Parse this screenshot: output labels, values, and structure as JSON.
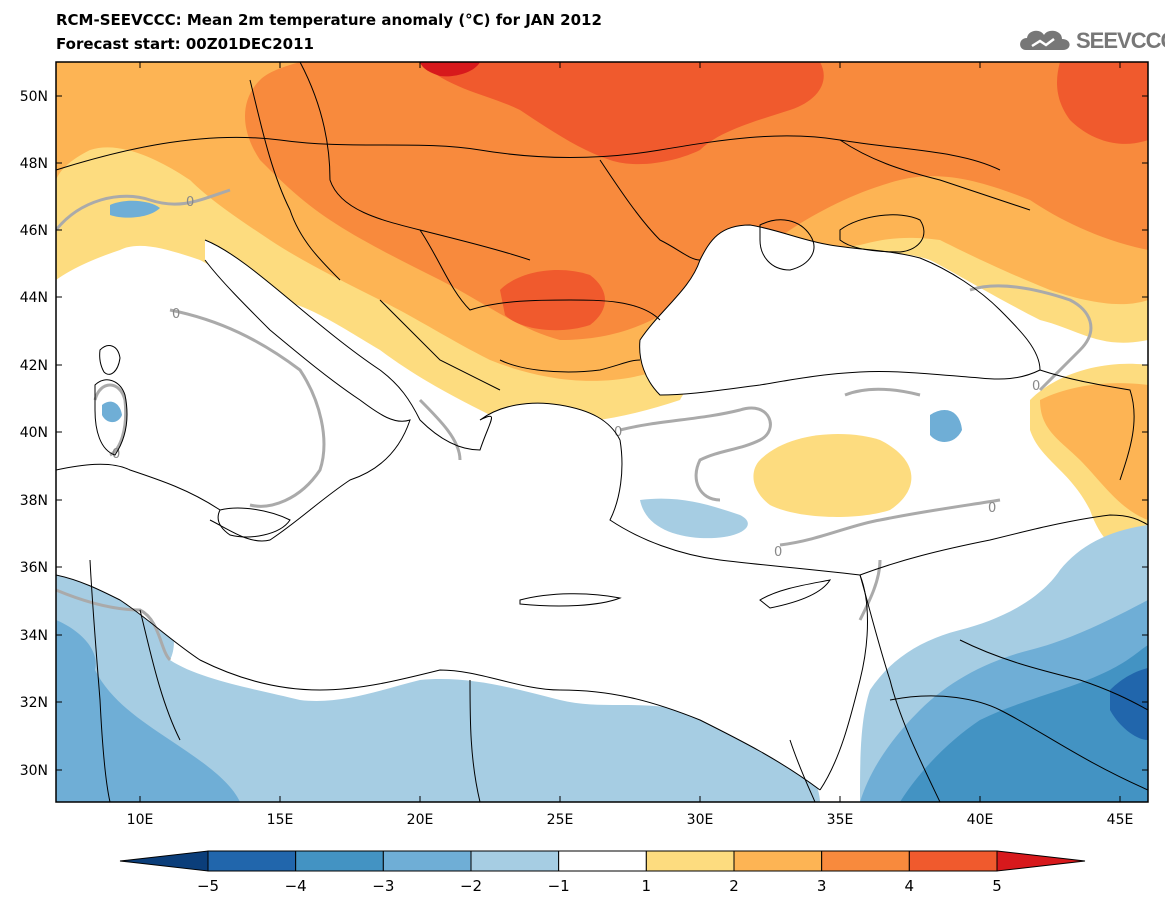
{
  "header": {
    "title": "RCM-SEEVCCC: Mean 2m temperature anomaly (°C) for JAN 2012",
    "subtitle": "Forecast start: 00Z01DEC2011"
  },
  "logo": {
    "text": "SEEVCCC",
    "icon": "cloud-logo-icon"
  },
  "map": {
    "lat_labels": [
      "50N",
      "48N",
      "46N",
      "44N",
      "42N",
      "40N",
      "38N",
      "36N",
      "34N",
      "32N",
      "30N"
    ],
    "lon_labels": [
      "10E",
      "15E",
      "20E",
      "25E",
      "30E",
      "35E",
      "40E",
      "45E"
    ],
    "contour_label": "0"
  },
  "colorbar": {
    "labels": [
      "−5",
      "−4",
      "−3",
      "−2",
      "−1",
      "1",
      "2",
      "3",
      "4",
      "5"
    ],
    "colors": [
      "#0b3e7a",
      "#2166ac",
      "#4393c3",
      "#6faed6",
      "#a6cde3",
      "#ffffff",
      "#fddc7f",
      "#fdb454",
      "#f88a3d",
      "#f05a2d",
      "#d7191c"
    ]
  }
}
